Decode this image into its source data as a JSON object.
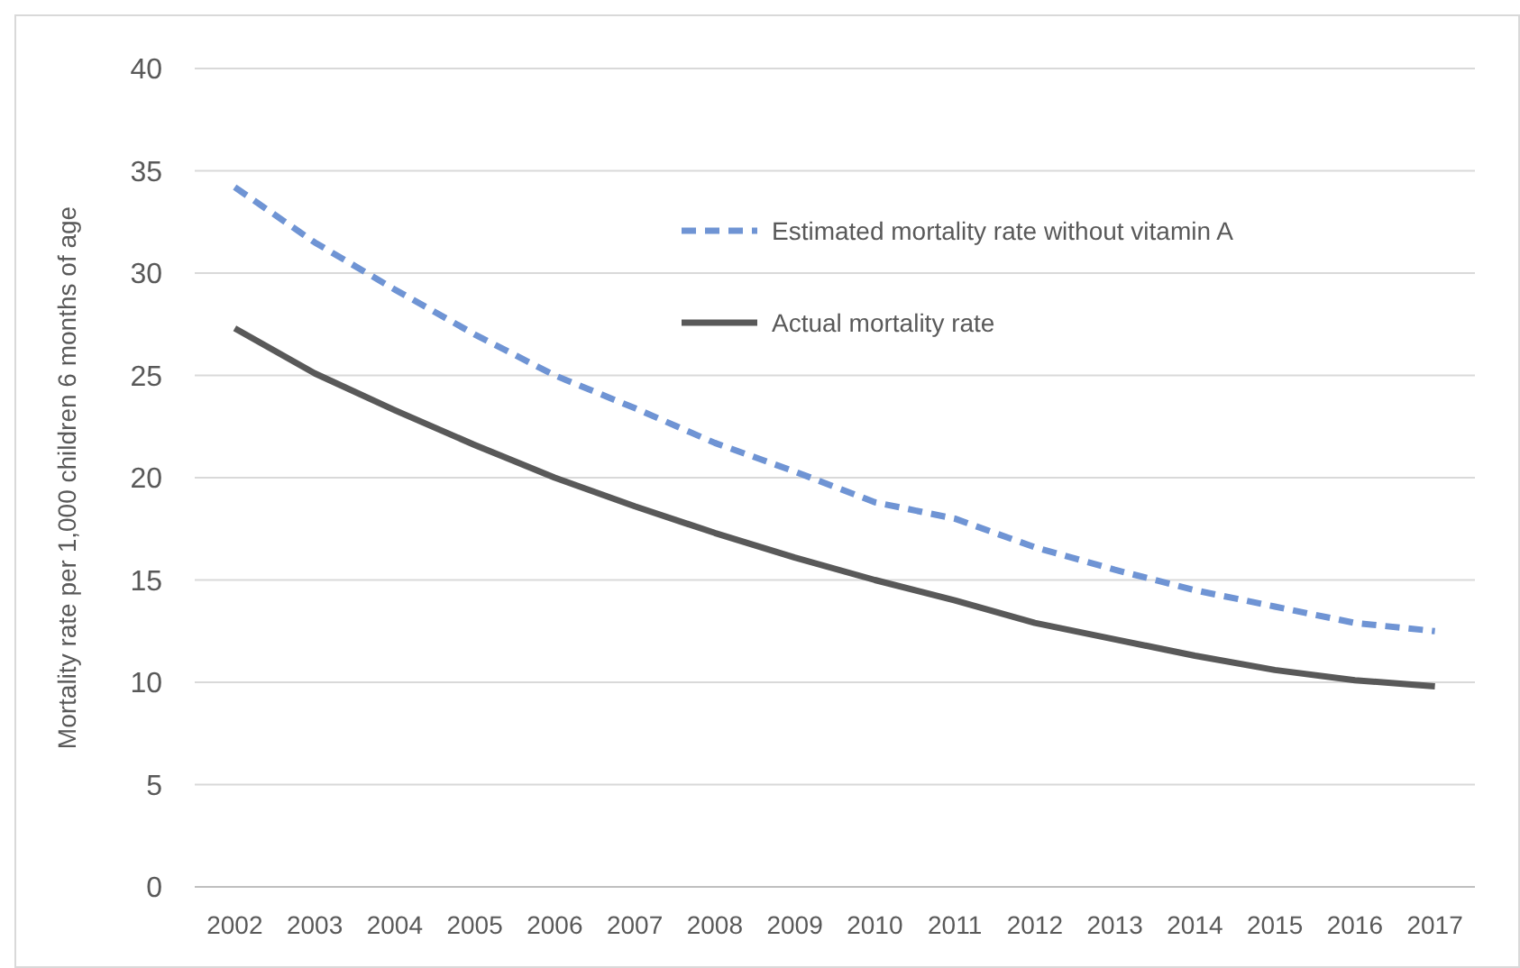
{
  "chart_data": {
    "type": "line",
    "ylabel": "Mortality rate per 1,000 children 6 months of age",
    "categories": [
      "2002",
      "2003",
      "2004",
      "2005",
      "2006",
      "2007",
      "2008",
      "2009",
      "2010",
      "2011",
      "2012",
      "2013",
      "2014",
      "2015",
      "2016",
      "2017"
    ],
    "series": [
      {
        "name": "Estimated mortality rate without vitamin A",
        "color": "#6f94d4",
        "line_style": "dashed",
        "values": [
          34.2,
          31.5,
          29.2,
          27.0,
          25.0,
          23.4,
          21.7,
          20.3,
          18.8,
          18.0,
          16.6,
          15.5,
          14.5,
          13.7,
          12.9,
          12.5
        ]
      },
      {
        "name": "Actual mortality rate",
        "color": "#595959",
        "line_style": "solid",
        "values": [
          27.3,
          25.1,
          23.3,
          21.6,
          20.0,
          18.6,
          17.3,
          16.1,
          15.0,
          14.0,
          12.9,
          12.1,
          11.3,
          10.6,
          10.1,
          9.8
        ]
      }
    ],
    "ylim": [
      0,
      40
    ],
    "yticks": [
      0,
      5,
      10,
      15,
      20,
      25,
      30,
      35,
      40
    ],
    "grid": "y",
    "legend": "top",
    "marker": "none"
  }
}
